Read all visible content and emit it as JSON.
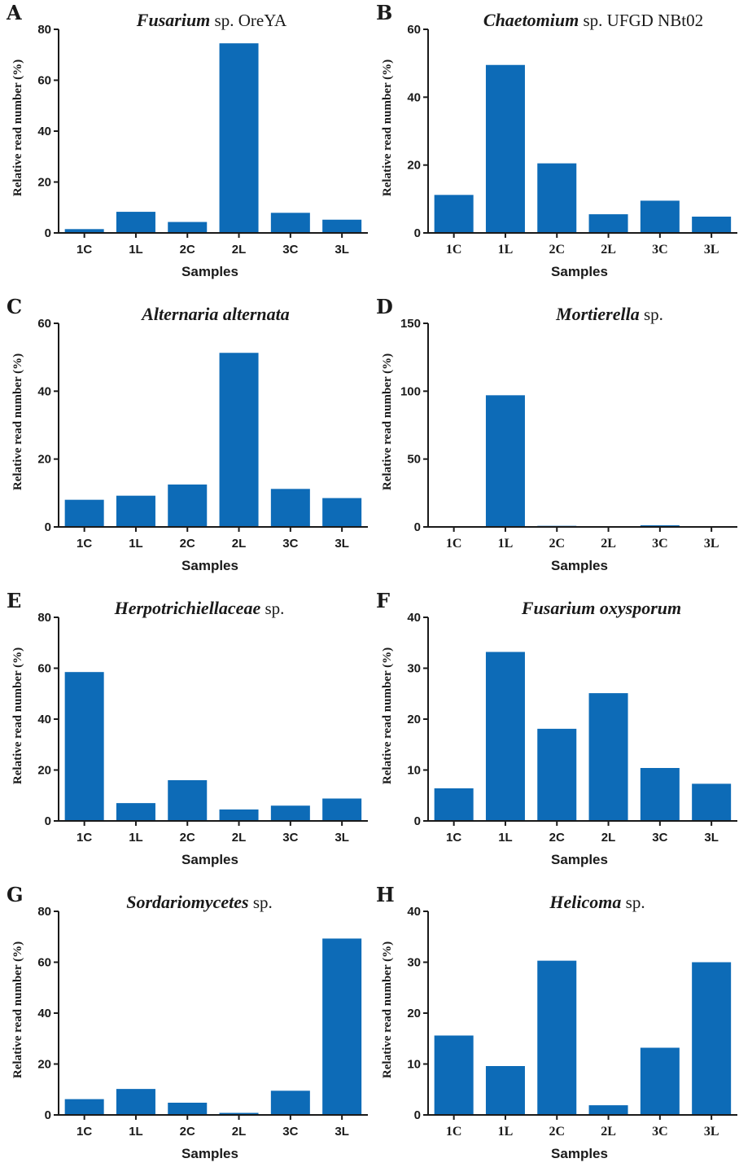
{
  "chart_data": [
    {
      "panel": "A",
      "type": "bar",
      "title": [
        {
          "text": "Fusarium",
          "style": "italic"
        },
        {
          "text": " sp. OreYA",
          "style": "normal"
        }
      ],
      "xlabel": "Samples",
      "ylabel": "Relative read number (%)",
      "categories": [
        "1C",
        "1L",
        "2C",
        "2L",
        "3C",
        "3L"
      ],
      "values": [
        1.5,
        8.3,
        4.3,
        74.5,
        7.9,
        5.2
      ],
      "ylim": [
        0,
        80
      ],
      "yticks": [
        0,
        20,
        40,
        60,
        80
      ],
      "color": "#0d6bb7"
    },
    {
      "panel": "B",
      "type": "bar",
      "title": [
        {
          "text": "Chaetomium",
          "style": "italic"
        },
        {
          "text": " sp. UFGD NBt02",
          "style": "normal"
        }
      ],
      "xlabel": "Samples",
      "ylabel": "Relative read number (%)",
      "categories": [
        "1C",
        "1L",
        "2C",
        "2L",
        "3C",
        "3L"
      ],
      "values": [
        11.2,
        49.5,
        20.5,
        5.5,
        9.5,
        4.8
      ],
      "ylim": [
        0,
        60
      ],
      "yticks": [
        0,
        20,
        40,
        60
      ],
      "color": "#0d6bb7"
    },
    {
      "panel": "C",
      "type": "bar",
      "title": [
        {
          "text": "Alternaria alternata",
          "style": "italic"
        }
      ],
      "xlabel": "Samples",
      "ylabel": "Relative read number (%)",
      "categories": [
        "1C",
        "1L",
        "2C",
        "2L",
        "3C",
        "3L"
      ],
      "values": [
        8.0,
        9.2,
        12.5,
        51.3,
        11.2,
        8.5
      ],
      "ylim": [
        0,
        60
      ],
      "yticks": [
        0,
        20,
        40,
        60
      ],
      "color": "#0d6bb7"
    },
    {
      "panel": "D",
      "type": "bar",
      "title": [
        {
          "text": "Mortierella",
          "style": "italic"
        },
        {
          "text": " sp.",
          "style": "normal"
        }
      ],
      "xlabel": "Samples",
      "ylabel": "Relative read number (%)",
      "categories": [
        "1C",
        "1L",
        "2C",
        "2L",
        "3C",
        "3L"
      ],
      "values": [
        0.5,
        97.0,
        0.8,
        0.6,
        1.2,
        0.5
      ],
      "ylim": [
        0,
        150
      ],
      "yticks": [
        0,
        50,
        100,
        150
      ],
      "color": "#0d6bb7"
    },
    {
      "panel": "E",
      "type": "bar",
      "title": [
        {
          "text": "Herpotrichiellaceae",
          "style": "italic"
        },
        {
          "text": " sp.",
          "style": "normal"
        }
      ],
      "xlabel": "Samples",
      "ylabel": "Relative read number (%)",
      "categories": [
        "1C",
        "1L",
        "2C",
        "2L",
        "3C",
        "3L"
      ],
      "values": [
        58.5,
        7.0,
        16.0,
        4.5,
        6.0,
        8.8
      ],
      "ylim": [
        0,
        80
      ],
      "yticks": [
        0,
        20,
        40,
        60,
        80
      ],
      "color": "#0d6bb7"
    },
    {
      "panel": "F",
      "type": "bar",
      "title": [
        {
          "text": "Fusarium oxysporum",
          "style": "italic"
        }
      ],
      "xlabel": "Samples",
      "ylabel": "Relative read number (%)",
      "categories": [
        "1C",
        "1L",
        "2C",
        "2L",
        "3C",
        "3L"
      ],
      "values": [
        6.4,
        33.2,
        18.1,
        25.1,
        10.4,
        7.3
      ],
      "ylim": [
        0,
        40
      ],
      "yticks": [
        0,
        10,
        20,
        30,
        40
      ],
      "color": "#0d6bb7"
    },
    {
      "panel": "G",
      "type": "bar",
      "title": [
        {
          "text": "Sordariomycetes",
          "style": "italic"
        },
        {
          "text": " sp.",
          "style": "normal"
        }
      ],
      "xlabel": "Samples",
      "ylabel": "Relative read number (%)",
      "categories": [
        "1C",
        "1L",
        "2C",
        "2L",
        "3C",
        "3L"
      ],
      "values": [
        6.2,
        10.2,
        4.8,
        0.8,
        9.5,
        69.3
      ],
      "ylim": [
        0,
        80
      ],
      "yticks": [
        0,
        20,
        40,
        60,
        80
      ],
      "color": "#0d6bb7"
    },
    {
      "panel": "H",
      "type": "bar",
      "title": [
        {
          "text": "Helicoma",
          "style": "italic"
        },
        {
          "text": " sp.",
          "style": "normal"
        }
      ],
      "xlabel": "Samples",
      "ylabel": "Relative read number (%)",
      "categories": [
        "1C",
        "1L",
        "2C",
        "2L",
        "3C",
        "3L"
      ],
      "values": [
        15.6,
        9.6,
        30.3,
        1.9,
        13.2,
        30.0
      ],
      "ylim": [
        0,
        40
      ],
      "yticks": [
        0,
        10,
        20,
        30,
        40
      ],
      "color": "#0d6bb7"
    }
  ]
}
